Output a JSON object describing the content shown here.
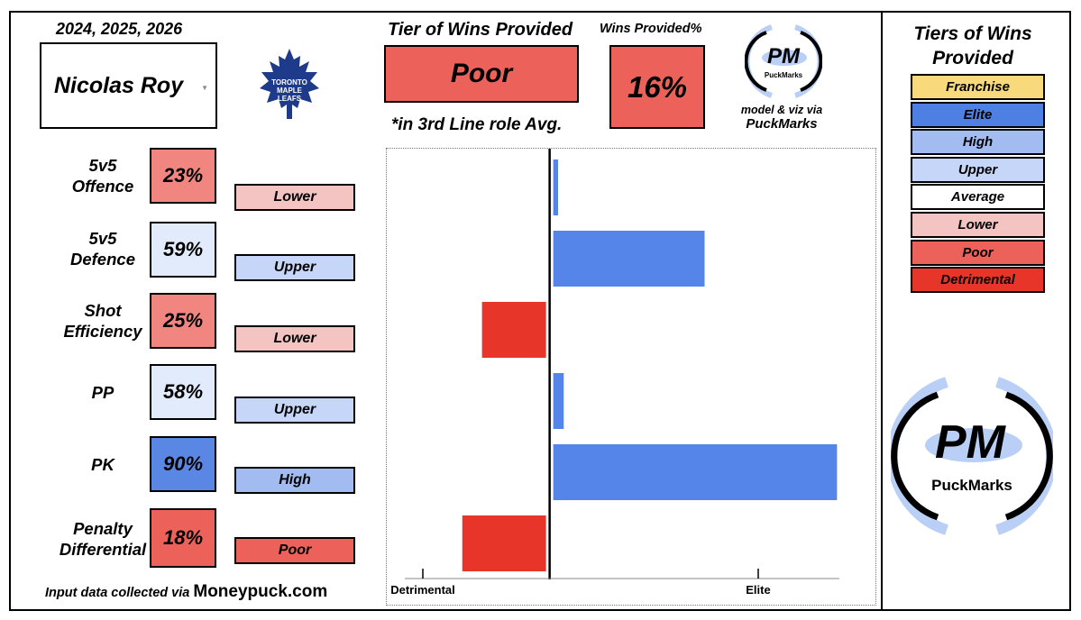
{
  "header": {
    "seasons": "2024, 2025, 2026",
    "player_name": "Nicolas Roy",
    "team_logo_text": [
      "TORONTO",
      "MAPLE",
      "LEAFS"
    ],
    "tier_title": "Tier of Wins Provided",
    "tier_value": "Poor",
    "role_note": "*in 3rd Line role Avg.",
    "wins_provided_title": "Wins Provided%",
    "wins_provided_value": "16%",
    "credit_line1": "model & viz via",
    "credit_line2": "PuckMarks",
    "brand_short": "PM",
    "brand_name": "PuckMarks"
  },
  "metrics": [
    {
      "label_lines": [
        "5v5",
        "Offence"
      ],
      "pct": "23%",
      "tier": "Lower",
      "pct_color": "#f18580",
      "tier_color": "#f4c4c2"
    },
    {
      "label_lines": [
        "5v5",
        "Defence"
      ],
      "pct": "59%",
      "tier": "Upper",
      "pct_color": "#e2ebfb",
      "tier_color": "#c5d6f8"
    },
    {
      "label_lines": [
        "Shot",
        "Efficiency"
      ],
      "pct": "25%",
      "tier": "Lower",
      "pct_color": "#f18580",
      "tier_color": "#f4c4c2"
    },
    {
      "label_lines": [
        "PP"
      ],
      "pct": "58%",
      "tier": "Upper",
      "pct_color": "#e2ebfb",
      "tier_color": "#c5d6f8"
    },
    {
      "label_lines": [
        "PK"
      ],
      "pct": "90%",
      "tier": "High",
      "pct_color": "#5b87e4",
      "tier_color": "#a2bcf1"
    },
    {
      "label_lines": [
        "Penalty",
        "Differential"
      ],
      "pct": "18%",
      "tier": "Poor",
      "pct_color": "#ec625a",
      "tier_color": "#ec625a"
    }
  ],
  "footer": {
    "prefix": "Input data collected via",
    "source": "Moneypuck.com"
  },
  "chart_data": {
    "type": "bar",
    "orientation": "horizontal",
    "categories": [
      "5v5 Offence",
      "5v5 Defence",
      "Shot Efficiency",
      "PP",
      "PK",
      "Penalty Differential"
    ],
    "values": [
      0.3,
      5.5,
      -2.4,
      0.5,
      10.2,
      -3.1
    ],
    "xlim": [
      -4.5,
      11.5
    ],
    "x_ticks": [
      {
        "value": -4.5,
        "label": "Detrimental"
      },
      {
        "value": 11.5,
        "label": "Elite"
      }
    ],
    "positive_color": "#5585e8",
    "negative_color": "#e8352a",
    "grid": false
  },
  "legend": {
    "title_lines": [
      "Tiers of Wins",
      "Provided"
    ],
    "items": [
      {
        "label": "Franchise",
        "color": "#f8da7c"
      },
      {
        "label": "Elite",
        "color": "#4e7fe3"
      },
      {
        "label": "High",
        "color": "#a2bcf1"
      },
      {
        "label": "Upper",
        "color": "#c5d6f8"
      },
      {
        "label": "Average",
        "color": "#ffffff"
      },
      {
        "label": "Lower",
        "color": "#f4c4c2"
      },
      {
        "label": "Poor",
        "color": "#ec625a"
      },
      {
        "label": "Detrimental",
        "color": "#e8352a"
      }
    ]
  }
}
